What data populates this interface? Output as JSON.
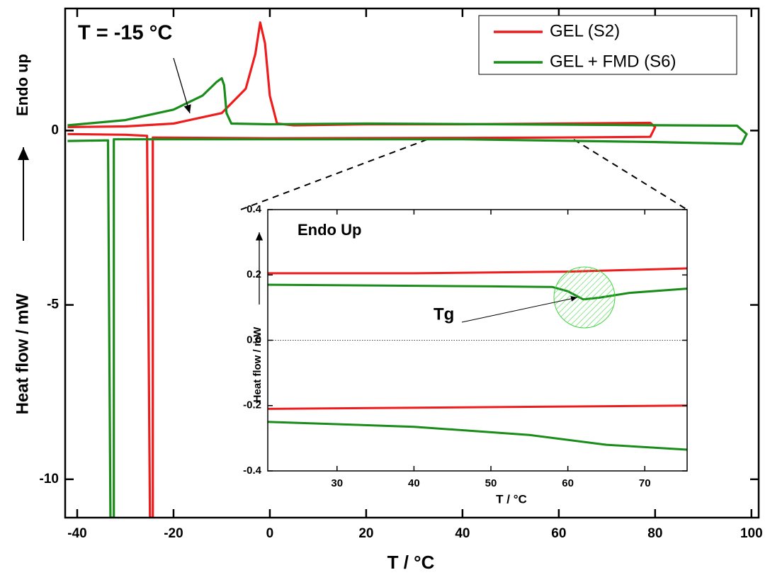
{
  "chart_data": [
    {
      "type": "line",
      "xlabel": "T / °C",
      "ylabel": "Heat flow / mW",
      "y_annotation": "Endo up",
      "annotation": "T = -15 °C",
      "xlim": [
        -42.5,
        101.5
      ],
      "ylim": [
        -11.1,
        3.5
      ],
      "xticks": [
        -40,
        -20,
        0,
        20,
        40,
        60,
        80,
        100
      ],
      "yticks": [
        -10,
        -5,
        0
      ],
      "legend": "upper right",
      "series": [
        {
          "name": "GEL (S2)",
          "color": "#ee1c1c",
          "x": [
            -42,
            -30,
            -20,
            -10,
            -5,
            -3,
            -2,
            -1,
            0,
            1.5,
            5,
            20,
            40,
            60,
            79,
            80,
            79,
            60,
            40,
            0,
            -24.3,
            -24.3,
            -24.9,
            -25.5,
            -30,
            -42
          ],
          "values": [
            0.1,
            0.12,
            0.2,
            0.5,
            1.2,
            2.2,
            3.1,
            2.5,
            1.0,
            0.2,
            0.15,
            0.18,
            0.18,
            0.2,
            0.22,
            0.1,
            -0.18,
            -0.2,
            -0.21,
            -0.22,
            -0.2,
            -11.1,
            -11.1,
            -0.15,
            -0.12,
            -0.1
          ]
        },
        {
          "name": "GEL + FMD (S6)",
          "color": "#1a8c1a",
          "x": [
            -42,
            -30,
            -20,
            -14,
            -11,
            -10,
            -9.5,
            -9,
            -8,
            0,
            20,
            60,
            97,
            99,
            98,
            80,
            40,
            0,
            -32.4,
            -32.4,
            -33.1,
            -33.6,
            -42
          ],
          "values": [
            0.15,
            0.3,
            0.6,
            1.0,
            1.4,
            1.5,
            1.3,
            0.5,
            0.2,
            0.18,
            0.2,
            0.17,
            0.14,
            -0.1,
            -0.38,
            -0.33,
            -0.25,
            -0.25,
            -0.25,
            -11.1,
            -11.1,
            -0.28,
            -0.3
          ]
        }
      ]
    },
    {
      "type": "line",
      "xlabel": "T / °C",
      "ylabel": "Heat flow / mW",
      "y_annotation": "Endo Up",
      "annotation": "Tg",
      "xlim": [
        21,
        75.5
      ],
      "ylim": [
        -0.4,
        0.4
      ],
      "xticks": [
        30,
        40,
        50,
        60,
        70
      ],
      "yticks": [
        -0.4,
        -0.2,
        {
          "value": 0,
          "label": "0.0"
        },
        0.2,
        0.4
      ],
      "zero_line": true,
      "series": [
        {
          "color": "#ee1c1c",
          "x": [
            21,
            40,
            60,
            75.5
          ],
          "values": [
            0.205,
            0.205,
            0.21,
            0.22
          ]
        },
        {
          "color": "#1a8c1a",
          "x": [
            21,
            50,
            58,
            60,
            62,
            64,
            68,
            75.5
          ],
          "values": [
            0.17,
            0.165,
            0.163,
            0.15,
            0.125,
            0.13,
            0.145,
            0.158
          ]
        },
        {
          "color": "#ee1c1c",
          "x": [
            21,
            75.5
          ],
          "values": [
            -0.21,
            -0.2
          ]
        },
        {
          "color": "#1a8c1a",
          "x": [
            21,
            40,
            55,
            65,
            75.5
          ],
          "values": [
            -0.25,
            -0.265,
            -0.29,
            -0.32,
            -0.335
          ]
        }
      ]
    }
  ]
}
